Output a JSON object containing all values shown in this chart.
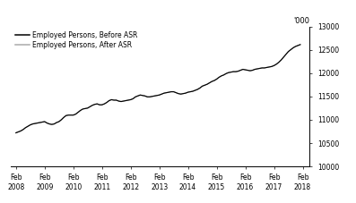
{
  "title": "",
  "ylabel": "'000",
  "ylim": [
    10000,
    13000
  ],
  "yticks": [
    10000,
    10500,
    11000,
    11500,
    12000,
    12500,
    13000
  ],
  "xlim_start": 2007.9,
  "xlim_end": 2018.33,
  "xtick_years": [
    2008,
    2009,
    2010,
    2011,
    2012,
    2013,
    2014,
    2015,
    2016,
    2017,
    2018
  ],
  "legend_labels": [
    "Employed Persons, Before ASR",
    "Employed Persons, After ASR"
  ],
  "line_color_before": "#000000",
  "line_color_after": "#aaaaaa",
  "background_color": "#ffffff",
  "line_width": 0.85,
  "before_asr": [
    10720,
    10740,
    10760,
    10790,
    10830,
    10860,
    10890,
    10910,
    10920,
    10930,
    10940,
    10950,
    10960,
    10930,
    10910,
    10900,
    10910,
    10940,
    10960,
    11000,
    11050,
    11090,
    11100,
    11100,
    11100,
    11120,
    11160,
    11200,
    11230,
    11240,
    11250,
    11280,
    11310,
    11330,
    11340,
    11320,
    11320,
    11340,
    11370,
    11410,
    11430,
    11420,
    11420,
    11400,
    11390,
    11400,
    11410,
    11420,
    11430,
    11450,
    11490,
    11510,
    11530,
    11520,
    11510,
    11490,
    11490,
    11500,
    11510,
    11520,
    11530,
    11550,
    11570,
    11580,
    11590,
    11600,
    11600,
    11580,
    11560,
    11550,
    11560,
    11570,
    11590,
    11600,
    11610,
    11630,
    11650,
    11680,
    11720,
    11740,
    11760,
    11790,
    11820,
    11840,
    11870,
    11910,
    11940,
    11960,
    11990,
    12010,
    12020,
    12030,
    12030,
    12040,
    12060,
    12080,
    12070,
    12060,
    12050,
    12060,
    12080,
    12090,
    12100,
    12110,
    12110,
    12120,
    12130,
    12140,
    12160,
    12190,
    12230,
    12280,
    12340,
    12400,
    12460,
    12500,
    12540,
    12570,
    12590,
    12610
  ],
  "after_asr": [
    10722,
    10742,
    10762,
    10792,
    10832,
    10862,
    10892,
    10912,
    10922,
    10932,
    10942,
    10952,
    10962,
    10932,
    10912,
    10902,
    10912,
    10942,
    10962,
    11002,
    11052,
    11092,
    11102,
    11102,
    11102,
    11122,
    11162,
    11202,
    11232,
    11242,
    11252,
    11282,
    11312,
    11332,
    11342,
    11322,
    11322,
    11342,
    11372,
    11412,
    11432,
    11422,
    11422,
    11402,
    11392,
    11402,
    11412,
    11422,
    11432,
    11452,
    11492,
    11512,
    11532,
    11522,
    11512,
    11492,
    11492,
    11502,
    11512,
    11522,
    11532,
    11552,
    11572,
    11582,
    11592,
    11602,
    11602,
    11582,
    11562,
    11552,
    11562,
    11572,
    11592,
    11602,
    11612,
    11632,
    11652,
    11682,
    11722,
    11742,
    11762,
    11792,
    11822,
    11842,
    11872,
    11912,
    11942,
    11962,
    11992,
    12012,
    12022,
    12032,
    12032,
    12042,
    12062,
    12082,
    12072,
    12062,
    12052,
    12062,
    12082,
    12092,
    12102,
    12112,
    12112,
    12122,
    12132,
    12142,
    12162,
    12192,
    12232,
    12282,
    12342,
    12402,
    12462,
    12502,
    12542,
    12572,
    12592,
    12612
  ]
}
